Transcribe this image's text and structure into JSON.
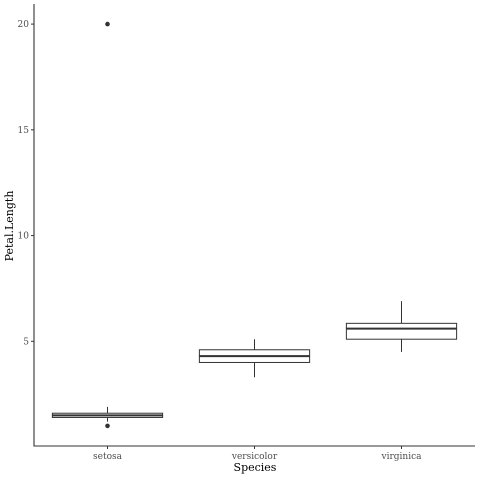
{
  "chart_data": {
    "type": "boxplot",
    "xlabel": "Species",
    "ylabel": "Petal.Length",
    "ylim": [
      0.05,
      20.95
    ],
    "y_ticks": [
      5,
      10,
      15,
      20
    ],
    "y_tick_labels": [
      "5",
      "10",
      "15",
      "20"
    ],
    "grid": false,
    "categories": [
      "setosa",
      "versicolor",
      "virginica"
    ],
    "boxes": [
      {
        "category": "setosa",
        "whisker_low": 1.2,
        "q1": 1.4,
        "median": 1.5,
        "q3": 1.6,
        "whisker_high": 1.9,
        "outliers": [
          1.0,
          20.0
        ]
      },
      {
        "category": "versicolor",
        "whisker_low": 3.3,
        "q1": 4.0,
        "median": 4.3,
        "q3": 4.6,
        "whisker_high": 5.1,
        "outliers": []
      },
      {
        "category": "virginica",
        "whisker_low": 4.5,
        "q1": 5.1,
        "median": 5.6,
        "q3": 5.85,
        "whisker_high": 6.9,
        "outliers": []
      }
    ]
  }
}
